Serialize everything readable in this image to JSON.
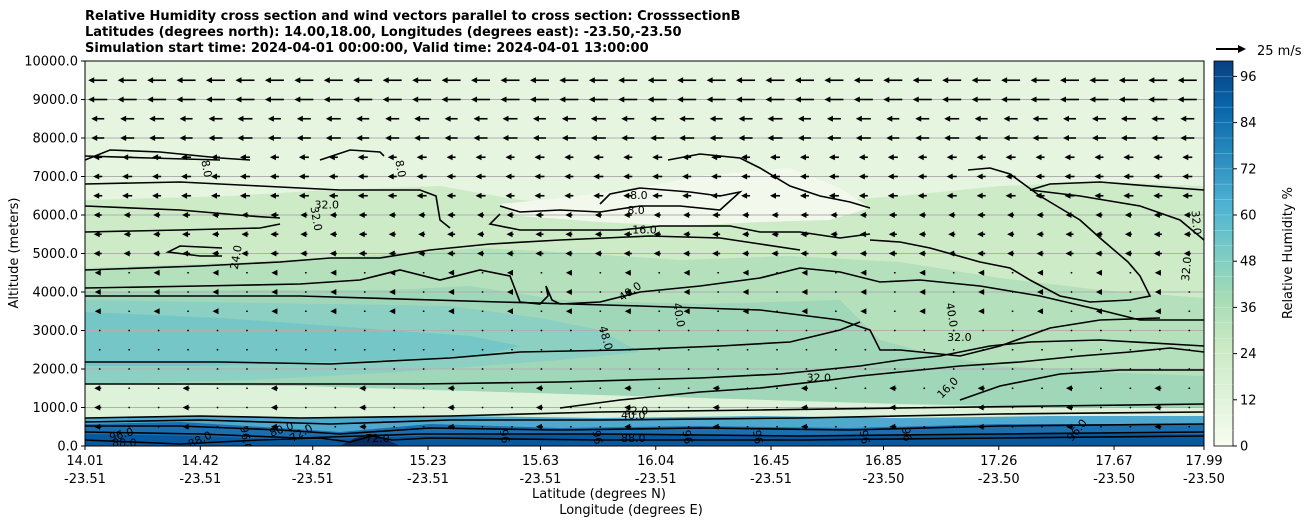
{
  "chart_data": {
    "type": "contour",
    "title_lines": [
      "Relative Humidity cross section and wind vectors parallel to cross section: CrosssectionB",
      "Latitudes (degrees north): 14.00,18.00, Longitudes (degrees east): -23.50,-23.50",
      "Simulation start time: 2024-04-01 00:00:00, Valid time: 2024-04-01 13:00:00"
    ],
    "xlabel_lat": "Latitude (degrees N)",
    "xlabel_lon": "Longitude (degrees E)",
    "ylabel": "Altitude (meters)",
    "ylim": [
      0,
      10000
    ],
    "xlim": [
      14.01,
      17.99
    ],
    "x_ticks": [
      {
        "lat": "14.01",
        "lon": "-23.51",
        "value": 14.01
      },
      {
        "lat": "14.42",
        "lon": "-23.51",
        "value": 14.42
      },
      {
        "lat": "14.82",
        "lon": "-23.51",
        "value": 14.82
      },
      {
        "lat": "15.23",
        "lon": "-23.51",
        "value": 15.23
      },
      {
        "lat": "15.63",
        "lon": "-23.51",
        "value": 15.63
      },
      {
        "lat": "16.04",
        "lon": "-23.51",
        "value": 16.04
      },
      {
        "lat": "16.45",
        "lon": "-23.51",
        "value": 16.45
      },
      {
        "lat": "16.85",
        "lon": "-23.50",
        "value": 16.85
      },
      {
        "lat": "17.26",
        "lon": "-23.50",
        "value": 17.26
      },
      {
        "lat": "17.67",
        "lon": "-23.50",
        "value": 17.67
      },
      {
        "lat": "17.99",
        "lon": "-23.50",
        "value": 17.99
      }
    ],
    "y_ticks": [
      "0.0",
      "1000.0",
      "2000.0",
      "3000.0",
      "4000.0",
      "5000.0",
      "6000.0",
      "7000.0",
      "8000.0",
      "9000.0",
      "10000.0"
    ],
    "colorbar": {
      "label": "Relative Humidity %",
      "ticks": [
        "0",
        "12",
        "24",
        "36",
        "48",
        "60",
        "72",
        "84",
        "96"
      ],
      "min": 0,
      "max": 100,
      "colors": [
        "#f7fcf0",
        "#e0f3db",
        "#ccebc5",
        "#a8ddb5",
        "#7bccc4",
        "#4eb3d3",
        "#2b8cbe",
        "#0868ac",
        "#084081"
      ]
    },
    "quiver_key": {
      "label": "25 m/s",
      "speed": 25
    },
    "contour_labels": [
      {
        "text": "8.0",
        "x": 14.44,
        "y": 7200,
        "rot": 80
      },
      {
        "text": "8.0",
        "x": 15.13,
        "y": 7200,
        "rot": 80
      },
      {
        "text": "32.0",
        "x": 14.87,
        "y": 6250,
        "rot": 0
      },
      {
        "text": "32.0",
        "x": 14.83,
        "y": 5900,
        "rot": 80
      },
      {
        "text": "24.0",
        "x": 14.55,
        "y": 4900,
        "rot": -80
      },
      {
        "text": "8.0",
        "x": 15.98,
        "y": 6500,
        "rot": 0
      },
      {
        "text": "8.0",
        "x": 15.97,
        "y": 6100,
        "rot": 0
      },
      {
        "text": "16.0",
        "x": 16.0,
        "y": 5600,
        "rot": 0
      },
      {
        "text": "40.0",
        "x": 15.95,
        "y": 4000,
        "rot": -35
      },
      {
        "text": "40.0",
        "x": 16.12,
        "y": 3400,
        "rot": 80
      },
      {
        "text": "48.0",
        "x": 15.86,
        "y": 2800,
        "rot": 75
      },
      {
        "text": "40.0",
        "x": 17.09,
        "y": 3400,
        "rot": 80
      },
      {
        "text": "32.0",
        "x": 17.12,
        "y": 2800,
        "rot": 0
      },
      {
        "text": "32.0",
        "x": 16.62,
        "y": 1750,
        "rot": 0
      },
      {
        "text": "16.0",
        "x": 17.08,
        "y": 1500,
        "rot": -45
      },
      {
        "text": "32.0",
        "x": 17.93,
        "y": 4600,
        "rot": -85
      },
      {
        "text": "32.0",
        "x": 17.96,
        "y": 5800,
        "rot": 85
      },
      {
        "text": "32.0",
        "x": 15.97,
        "y": 900,
        "rot": 0
      },
      {
        "text": "40.0",
        "x": 15.96,
        "y": 780,
        "rot": 0
      },
      {
        "text": "88.0",
        "x": 15.96,
        "y": 180,
        "rot": 0
      },
      {
        "text": "96.0",
        "x": 14.14,
        "y": 280,
        "rot": -15
      },
      {
        "text": "88.0",
        "x": 14.15,
        "y": 60,
        "rot": 0
      },
      {
        "text": "88.0",
        "x": 14.42,
        "y": 150,
        "rot": -25
      },
      {
        "text": "96.0",
        "x": 14.58,
        "y": 200,
        "rot": 80
      },
      {
        "text": "80.0",
        "x": 14.71,
        "y": 420,
        "rot": -20
      },
      {
        "text": "72.0",
        "x": 14.78,
        "y": 320,
        "rot": -30
      },
      {
        "text": "72.0",
        "x": 15.05,
        "y": 180,
        "rot": 0
      },
      {
        "text": "96",
        "x": 15.5,
        "y": 250,
        "rot": 80
      },
      {
        "text": "96",
        "x": 15.83,
        "y": 220,
        "rot": 80
      },
      {
        "text": "96",
        "x": 16.15,
        "y": 230,
        "rot": 80
      },
      {
        "text": "96",
        "x": 16.4,
        "y": 230,
        "rot": 80
      },
      {
        "text": "96",
        "x": 16.78,
        "y": 230,
        "rot": 80
      },
      {
        "text": "96",
        "x": 16.93,
        "y": 300,
        "rot": 80
      },
      {
        "text": "96.0",
        "x": 17.54,
        "y": 400,
        "rot": -50
      }
    ]
  }
}
